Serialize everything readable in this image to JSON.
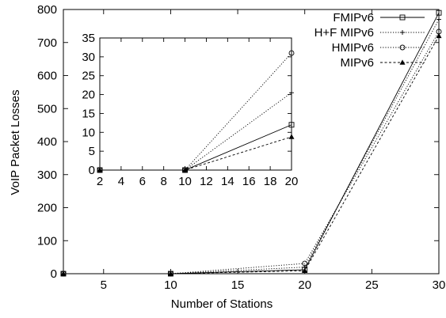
{
  "chart_data": [
    {
      "type": "line",
      "xlabel": "Number of Stations",
      "ylabel": "VoIP Packet Losses",
      "xlim": [
        2,
        30
      ],
      "ylim": [
        0,
        800
      ],
      "xticks": [
        5,
        10,
        15,
        20,
        25,
        30
      ],
      "yticks": [
        0,
        100,
        200,
        300,
        400,
        500,
        600,
        700,
        800
      ],
      "grid": false,
      "legend_position": "top-right",
      "series": [
        {
          "name": "FMIPv6",
          "marker": "square",
          "dash": "solid",
          "x": [
            2,
            10,
            20,
            30
          ],
          "y": [
            0,
            0,
            12,
            790
          ]
        },
        {
          "name": "H+F MIPv6",
          "marker": "plus",
          "dash": "dotted",
          "x": [
            2,
            10,
            20,
            30
          ],
          "y": [
            0,
            0,
            20,
            770
          ]
        },
        {
          "name": "HMIPv6",
          "marker": "circle",
          "dash": "dotted",
          "x": [
            2,
            10,
            20,
            30
          ],
          "y": [
            0,
            0,
            31,
            733
          ]
        },
        {
          "name": "MIPv6",
          "marker": "triangle",
          "dash": "dashed",
          "x": [
            2,
            10,
            20,
            30
          ],
          "y": [
            0,
            0,
            9,
            720
          ]
        }
      ]
    },
    {
      "type": "line",
      "inset": true,
      "xlim": [
        2,
        20
      ],
      "ylim": [
        0,
        35
      ],
      "xticks": [
        2,
        4,
        6,
        8,
        10,
        12,
        14,
        16,
        18,
        20
      ],
      "yticks": [
        0,
        5,
        10,
        15,
        20,
        25,
        30,
        35
      ],
      "grid": false,
      "series": [
        {
          "name": "FMIPv6",
          "marker": "square",
          "dash": "solid",
          "x": [
            2,
            10,
            20
          ],
          "y": [
            0,
            0,
            12
          ]
        },
        {
          "name": "H+F MIPv6",
          "marker": "plus",
          "dash": "dotted",
          "x": [
            2,
            10,
            20
          ],
          "y": [
            0,
            0,
            20.5
          ]
        },
        {
          "name": "HMIPv6",
          "marker": "circle",
          "dash": "dotted",
          "x": [
            2,
            10,
            20
          ],
          "y": [
            0,
            0,
            31
          ]
        },
        {
          "name": "MIPv6",
          "marker": "triangle",
          "dash": "dashed",
          "x": [
            2,
            10,
            20
          ],
          "y": [
            0,
            0,
            8.8
          ]
        }
      ]
    }
  ]
}
